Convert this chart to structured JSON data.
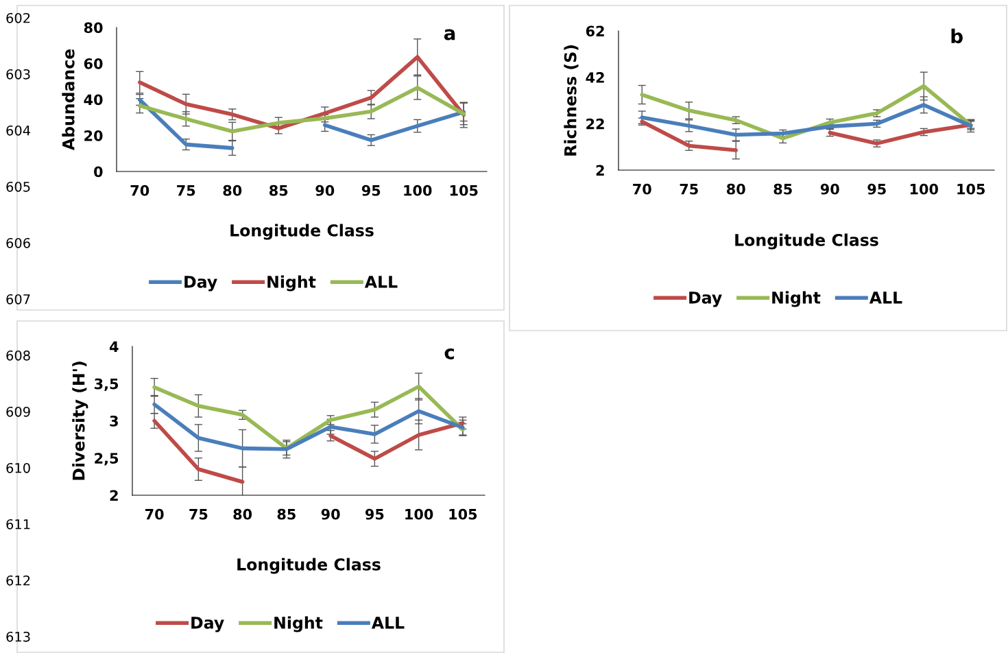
{
  "chart_data": [
    {
      "type": "line",
      "xlabel": "Longitude Class",
      "ylabel": "Abundance",
      "categories": [
        "70",
        "75",
        "80",
        "85",
        "90",
        "95",
        "100",
        "105"
      ],
      "ylim": [
        0,
        80
      ],
      "yticks": [
        0,
        20,
        40,
        60,
        80
      ],
      "legend": "bottom",
      "grid": false,
      "marker": "none",
      "line_style": "solid",
      "annotations": [
        "a",
        "602",
        "603",
        "604",
        "605",
        "606",
        "607"
      ],
      "series": [
        {
          "name": "Day",
          "color": "#4a7ebb",
          "values": [
            39.8,
            15,
            13,
            null,
            25.8,
            17.4,
            25.3,
            33
          ],
          "errors": [
            3,
            3,
            4,
            null,
            3.5,
            3,
            3.5,
            5
          ]
        },
        {
          "name": "Night",
          "color": "#be4b48",
          "values": [
            49.5,
            37.4,
            31.7,
            24,
            32.3,
            41,
            63.6,
            31.4
          ],
          "errors": [
            6,
            5.5,
            3,
            3,
            3.5,
            4,
            10,
            7
          ]
        },
        {
          "name": "ALL",
          "color": "#98b954",
          "values": [
            36.5,
            29.2,
            22.3,
            27,
            29.5,
            33.3,
            46.5,
            32
          ],
          "errors": [
            4,
            4,
            5,
            3,
            2,
            4,
            6.5,
            6
          ]
        }
      ]
    },
    {
      "type": "line",
      "xlabel": "Longitude Class",
      "ylabel": "Richness (S)",
      "categories": [
        "70",
        "75",
        "80",
        "85",
        "90",
        "95",
        "100",
        "105"
      ],
      "ylim": [
        2,
        62
      ],
      "yticks": [
        2,
        22,
        42,
        62
      ],
      "legend": "bottom",
      "grid": false,
      "marker": "none",
      "line_style": "solid",
      "annotations": [
        "b"
      ],
      "series": [
        {
          "name": "Day",
          "color": "#be4b48",
          "values": [
            22.9,
            12.5,
            10.6,
            null,
            18.1,
            13.5,
            18.4,
            21.5
          ],
          "errors": [
            1.5,
            2,
            3.8,
            null,
            1.5,
            1.5,
            1.5,
            1.5
          ]
        },
        {
          "name": "Night",
          "color": "#98b954",
          "values": [
            34.5,
            27.7,
            23.5,
            15.7,
            22.5,
            26.5,
            38.2,
            21.4
          ],
          "errors": [
            4,
            3.6,
            1.5,
            2,
            1.5,
            1.5,
            6,
            2
          ]
        },
        {
          "name": "ALL",
          "color": "#4a7ebb",
          "values": [
            24.7,
            21.1,
            17.2,
            17.8,
            20.8,
            22,
            30.1,
            21.1
          ],
          "errors": [
            2.7,
            2.5,
            2.5,
            1.5,
            1,
            1.5,
            3.5,
            2.7
          ]
        }
      ]
    },
    {
      "type": "line",
      "xlabel": "Longitude Class",
      "ylabel": "Diversity (H')",
      "categories": [
        "70",
        "75",
        "80",
        "85",
        "90",
        "95",
        "100",
        "105"
      ],
      "ylim": [
        2,
        4
      ],
      "yticks": [
        2,
        {
          "value": 2.5,
          "label": "2,5"
        },
        3,
        {
          "value": 3.5,
          "label": "3,5"
        },
        4
      ],
      "legend": "bottom",
      "grid": false,
      "marker": "none",
      "line_style": "solid",
      "annotations": [
        "c",
        "608",
        "609",
        "610",
        "611",
        "612",
        "613"
      ],
      "series": [
        {
          "name": "Day",
          "color": "#be4b48",
          "values": [
            3.0,
            2.35,
            2.18,
            null,
            2.8,
            2.49,
            2.81,
            2.97
          ],
          "errors": [
            0.1,
            0.15,
            0.2,
            null,
            0.07,
            0.1,
            0.2,
            0.08
          ]
        },
        {
          "name": "Night",
          "color": "#98b954",
          "values": [
            3.45,
            3.2,
            3.08,
            2.63,
            3.01,
            3.15,
            3.46,
            2.88
          ],
          "errors": [
            0.12,
            0.15,
            0.06,
            0.09,
            0.06,
            0.1,
            0.18,
            0.08
          ]
        },
        {
          "name": "ALL",
          "color": "#4a7ebb",
          "values": [
            3.22,
            2.77,
            2.63,
            2.62,
            2.92,
            2.82,
            3.13,
            2.91
          ],
          "errors": [
            0.12,
            0.18,
            0.25,
            0.12,
            0.1,
            0.12,
            0.17,
            0.1
          ]
        }
      ]
    }
  ]
}
